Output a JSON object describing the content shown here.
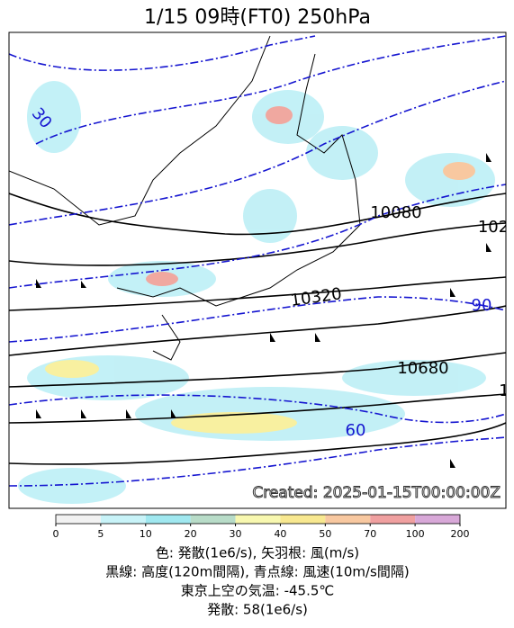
{
  "header": {
    "title": "1/15  09時(FT0)     250hPa"
  },
  "map": {
    "contour_labels": [
      "30",
      "10080",
      "102",
      "10320",
      "90",
      "10680",
      "60",
      "1"
    ],
    "created": "Created: 2025-01-15T00:00:00Z"
  },
  "colorbar": {
    "ticks": [
      "0",
      "5",
      "10",
      "20",
      "30",
      "40",
      "50",
      "70",
      "100",
      "200"
    ],
    "colors": [
      "#f2f2f2",
      "#c8f3f8",
      "#a0e8f0",
      "#b8dcc8",
      "#f8f8b0",
      "#f8e890",
      "#f8c8a0",
      "#f0a0a0",
      "#d8a8d8"
    ]
  },
  "caption": [
    "色: 発散(1e6/s),  矢羽根: 風(m/s)",
    "黒線: 高度(120m間隔),  青点線: 風速(10m/s間隔)",
    "東京上空の気温: -45.5℃",
    "発散: 58(1e6/s)"
  ]
}
